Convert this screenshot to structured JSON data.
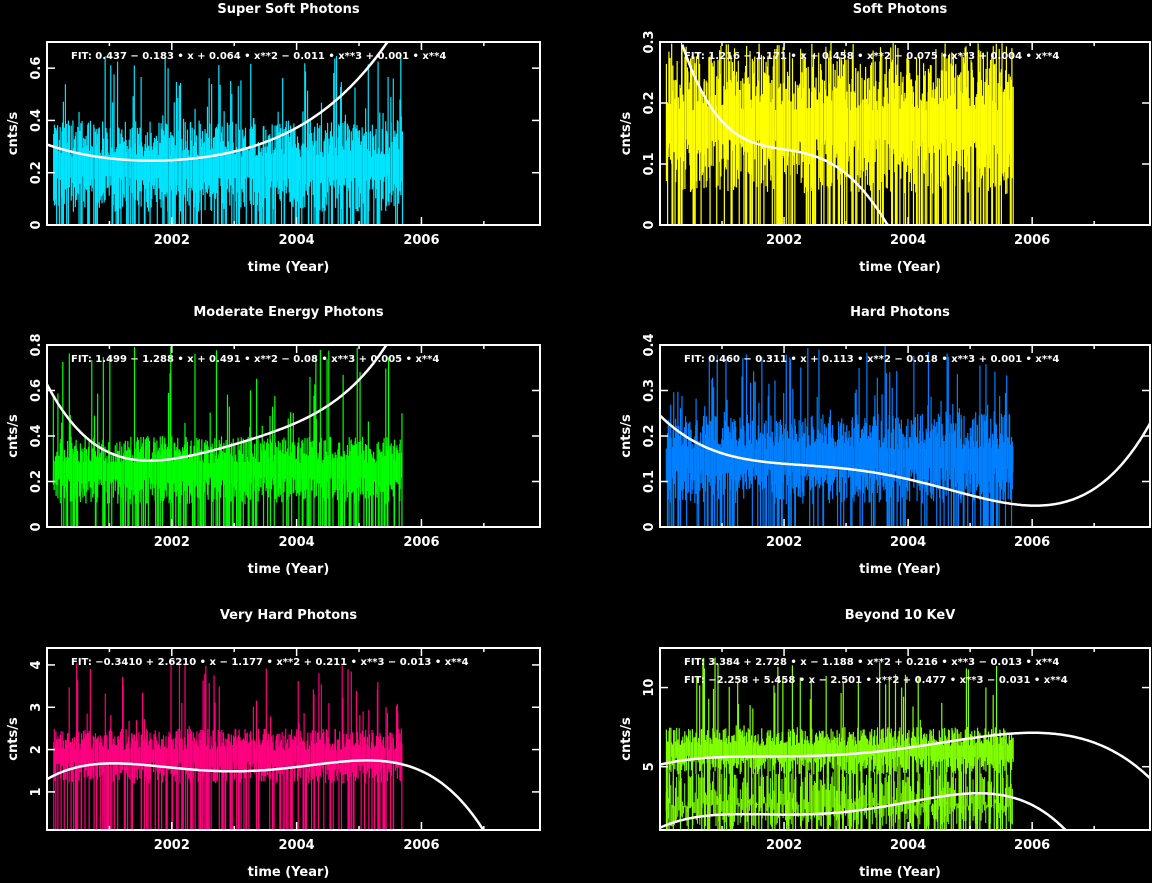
{
  "chart_data": [
    {
      "type": "scatter",
      "title": "Super Soft Photons",
      "xlabel": "time (Year)",
      "ylabel": "cnts/s",
      "xlim": [
        2000.0,
        2007.9
      ],
      "ylim": [
        0,
        0.7
      ],
      "xticks": [
        2002,
        2004,
        2006
      ],
      "yticks": [
        0,
        0.2,
        0.4,
        0.6
      ],
      "color": "#00e5ff",
      "data_x_range": [
        2000.1,
        2005.7
      ],
      "data_band": [
        0.05,
        0.4
      ],
      "data_peak": 0.65,
      "fits": [
        {
          "label": "FIT:  0.437  −  0.183  •  x  +  0.064  •  x**2  −  0.011  •  x**3  +  0.001  •  x**4",
          "coef": [
            0.437,
            -0.183,
            0.064,
            -0.011,
            0.001
          ]
        }
      ]
    },
    {
      "type": "scatter",
      "title": "Soft Photons",
      "xlabel": "time (Year)",
      "ylabel": "cnts/s",
      "xlim": [
        2000.0,
        2007.9
      ],
      "ylim": [
        0,
        0.3
      ],
      "xticks": [
        2002,
        2004,
        2006
      ],
      "yticks": [
        0,
        0.1,
        0.2,
        0.3
      ],
      "color": "#ffff00",
      "data_x_range": [
        2000.1,
        2005.7
      ],
      "data_band": [
        0.05,
        0.28
      ],
      "data_peak": 0.3,
      "fits": [
        {
          "label": "FIT:  1.216  −  1.171  •  x  +  0.458  •  x**2  −  0.075  •  x**3  +  0.004  •  x**4",
          "coef": [
            1.216,
            -1.171,
            0.458,
            -0.075,
            0.004
          ]
        }
      ]
    },
    {
      "type": "scatter",
      "title": "Moderate Energy Photons",
      "xlabel": "time (Year)",
      "ylabel": "cnts/s",
      "xlim": [
        2000.0,
        2007.9
      ],
      "ylim": [
        0,
        0.8
      ],
      "xticks": [
        2002,
        2004,
        2006
      ],
      "yticks": [
        0,
        0.2,
        0.4,
        0.6,
        0.8
      ],
      "color": "#00ff00",
      "data_x_range": [
        2000.1,
        2005.7
      ],
      "data_band": [
        0.1,
        0.4
      ],
      "data_peak": 0.8,
      "fits": [
        {
          "label": "FIT:  1.499  −  1.288  •  x  +  0.491  •  x**2  −  0.08  •  x**3  +  0.005  •  x**4",
          "coef": [
            1.499,
            -1.288,
            0.491,
            -0.08,
            0.005
          ]
        }
      ]
    },
    {
      "type": "scatter",
      "title": "Hard Photons",
      "xlabel": "time (Year)",
      "ylabel": "cnts/s",
      "xlim": [
        2000.0,
        2007.9
      ],
      "ylim": [
        0,
        0.4
      ],
      "xticks": [
        2002,
        2004,
        2006
      ],
      "yticks": [
        0,
        0.1,
        0.2,
        0.3,
        0.4
      ],
      "color": "#0080ff",
      "data_x_range": [
        2000.1,
        2005.7
      ],
      "data_band": [
        0.05,
        0.25
      ],
      "data_peak": 0.4,
      "fits": [
        {
          "label": "FIT:  0.460  −  0.311  •  x  +  0.113  •  x**2  −  0.018  •  x**3  +  0.001  •  x**4",
          "coef": [
            0.46,
            -0.311,
            0.113,
            -0.018,
            0.001
          ]
        }
      ]
    },
    {
      "type": "scatter",
      "title": "Very Hard  Photons",
      "xlabel": "time (Year)",
      "ylabel": "cnts/s",
      "xlim": [
        2000.0,
        2007.9
      ],
      "ylim": [
        0.1,
        4.4
      ],
      "xticks": [
        2002,
        2004,
        2006
      ],
      "yticks": [
        1,
        2,
        3,
        4
      ],
      "color": "#ff0080",
      "data_x_range": [
        2000.1,
        2005.7
      ],
      "data_band": [
        1.2,
        2.5
      ],
      "data_peak": 4.2,
      "fits": [
        {
          "label": "FIT:  −0.3410  +  2.6210  •  x  −  1.177  •  x**2  +  0.211  •  x**3  −  0.013  •  x**4",
          "coef": [
            -0.341,
            2.621,
            -1.177,
            0.211,
            -0.013
          ]
        }
      ]
    },
    {
      "type": "scatter",
      "title": "Beyond 10 KeV",
      "xlabel": "time (Year)",
      "ylabel": "cnts/s",
      "xlim": [
        2000.0,
        2007.9
      ],
      "ylim": [
        1,
        12.5
      ],
      "xticks": [
        2002,
        2004,
        2006
      ],
      "yticks": [
        5,
        10
      ],
      "color": "#80ff00",
      "data_x_range": [
        2000.1,
        2005.7
      ],
      "data_band": [
        4.5,
        7.5
      ],
      "data_peak": 12,
      "fits": [
        {
          "label": "FIT:  3.384  +  2.728  •  x  −  1.188  •  x**2  +  0.216  •  x**3  −  0.013  •  x**4",
          "coef": [
            3.384,
            2.728,
            -1.188,
            0.216,
            -0.013
          ]
        },
        {
          "label": "FIT:  −2.258  +  5.458  •  x  −  2.501  •  x**2  +  0.477  •  x**3  −  0.031  •  x**4",
          "coef": [
            -2.258,
            5.458,
            -2.501,
            0.477,
            -0.031
          ]
        }
      ]
    }
  ]
}
